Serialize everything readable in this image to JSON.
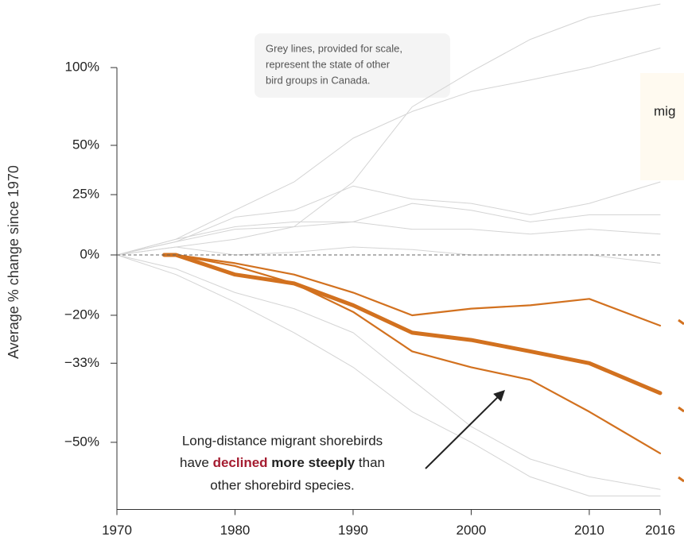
{
  "chart_data": {
    "type": "line",
    "y_label": "Average % change since 1970",
    "scale": "log-ratio",
    "xlim": [
      1970,
      2016
    ],
    "xticks": [
      1970,
      1980,
      1990,
      2000,
      2010,
      2016
    ],
    "ylim": [
      -61,
      155
    ],
    "yticks": [
      {
        "value": 100,
        "label": "100%"
      },
      {
        "value": 50,
        "label": "50%"
      },
      {
        "value": 25,
        "label": "25%"
      },
      {
        "value": 0,
        "label": "0%"
      },
      {
        "value": -20,
        "label": "−20%"
      },
      {
        "value": -33,
        "label": "−33%"
      },
      {
        "value": -50,
        "label": "−50%"
      }
    ],
    "baseline_dashed": true,
    "note": [
      "Grey lines, provided for scale,",
      "represent the state of other",
      "bird groups in Canada."
    ],
    "side_note": "mig",
    "annotation": {
      "line1": "Long-distance migrant shorebirds",
      "line2": [
        {
          "text": "have ",
          "style": "normal"
        },
        {
          "text": "declined",
          "style": "strong-red"
        },
        {
          "text": " more steeply",
          "style": "strong"
        },
        {
          "text": " than",
          "style": "normal"
        }
      ],
      "line3": "other shorebird species."
    },
    "series": [
      {
        "color": "#d4d4d4",
        "x": [
          1970,
          1975,
          1980,
          1985,
          1990,
          1995,
          2000,
          2005,
          2010,
          2016
        ],
        "values": [
          0,
          3,
          6,
          11,
          31,
          73,
          97,
          122,
          141,
          153
        ]
      },
      {
        "color": "#d4d4d4",
        "x": [
          1970,
          1975,
          1980,
          1985,
          1990,
          1995,
          2000,
          2005,
          2010,
          2016
        ],
        "values": [
          0,
          6,
          18,
          31,
          54,
          70,
          83,
          91,
          100,
          115
        ]
      },
      {
        "color": "#d4d4d4",
        "x": [
          1970,
          1975,
          1980,
          1985,
          1990,
          1995,
          2000,
          2005,
          2010,
          2016
        ],
        "values": [
          0,
          5,
          15,
          18,
          29,
          23,
          21,
          16,
          21,
          31
        ]
      },
      {
        "color": "#d4d4d4",
        "x": [
          1970,
          1975,
          1980,
          1985,
          1990,
          1995,
          2000,
          2005,
          2010,
          2016
        ],
        "values": [
          0,
          6,
          11,
          13,
          13,
          21,
          18,
          13,
          16,
          16
        ]
      },
      {
        "color": "#d4d4d4",
        "x": [
          1970,
          1975,
          1980,
          1985,
          1990,
          1995,
          2000,
          2005,
          2010,
          2016
        ],
        "values": [
          0,
          5,
          10,
          11,
          13,
          10,
          10,
          8,
          10,
          8
        ]
      },
      {
        "color": "#d4d4d4",
        "x": [
          1970,
          1975,
          1980,
          1985,
          1990,
          1995,
          2000,
          2005,
          2010,
          2016
        ],
        "values": [
          0,
          3,
          0,
          1,
          3,
          2,
          0,
          0,
          0,
          -3
        ]
      },
      {
        "color": "#d4d4d4",
        "x": [
          1970,
          1975,
          1980,
          1985,
          1990,
          1995,
          2000,
          2005,
          2010,
          2016
        ],
        "values": [
          0,
          -5,
          -13,
          -18,
          -25,
          -37,
          -47,
          -53,
          -56,
          -58
        ]
      },
      {
        "color": "#d4d4d4",
        "x": [
          1970,
          1975,
          1980,
          1985,
          1990,
          1995,
          2000,
          2005,
          2010,
          2016
        ],
        "values": [
          0,
          -7,
          -16,
          -25,
          -34,
          -44,
          -50,
          -56,
          -59,
          -59
        ]
      },
      {
        "color": "#d2711f",
        "x": [
          1974,
          1975,
          1980,
          1985,
          1990,
          1995,
          2000,
          2005,
          2010,
          2016
        ],
        "values": [
          0,
          0,
          -3,
          -7,
          -13,
          -20,
          -18,
          -17,
          -15,
          -23
        ]
      },
      {
        "color": "#d2711f",
        "x": [
          1974,
          1975,
          1980,
          1985,
          1990,
          1995,
          2000,
          2005,
          2010,
          2016
        ],
        "values": [
          0,
          0,
          -4,
          -10,
          -19,
          -30,
          -34,
          -37,
          -44,
          -52
        ]
      },
      {
        "color": "#d2711f",
        "x": [
          1974,
          1975,
          1980,
          1985,
          1990,
          1995,
          2000,
          2005,
          2010,
          2016
        ],
        "values": [
          0,
          0,
          -7,
          -10,
          -17,
          -25,
          -27,
          -30,
          -33,
          -40
        ]
      }
    ]
  }
}
